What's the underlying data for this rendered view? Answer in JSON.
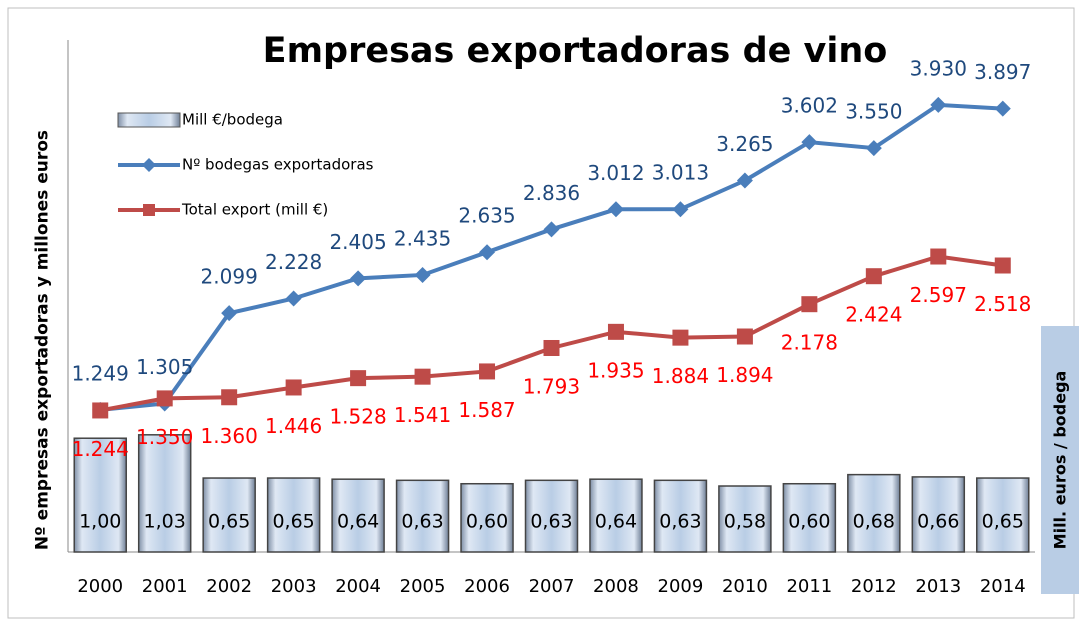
{
  "chart_data": {
    "type": "bar-line",
    "title": "Empresas exportadoras de vino",
    "y_label": "Nº empresas exportadoras y millones euros",
    "y2_label": "Mill. euros / bodega",
    "categories": [
      "2000",
      "2001",
      "2002",
      "2003",
      "2004",
      "2005",
      "2006",
      "2007",
      "2008",
      "2009",
      "2010",
      "2011",
      "2012",
      "2013",
      "2014"
    ],
    "ylim": [
      0,
      4500
    ],
    "y2lim": [
      0,
      4.5
    ],
    "legend": "top-left",
    "series": [
      {
        "name": "Mill €/bodega",
        "type": "bar",
        "axis": "y2",
        "color": "#b9cde5",
        "values": [
          1.0,
          1.03,
          0.65,
          0.65,
          0.64,
          0.63,
          0.6,
          0.63,
          0.64,
          0.63,
          0.58,
          0.6,
          0.68,
          0.66,
          0.65
        ],
        "value_labels": [
          "1,00",
          "1,03",
          "0,65",
          "0,65",
          "0,64",
          "0,63",
          "0,60",
          "0,63",
          "0,64",
          "0,63",
          "0,58",
          "0,60",
          "0,68",
          "0,66",
          "0,65"
        ]
      },
      {
        "name": "Nº bodegas exportadoras",
        "type": "line",
        "color": "#4a7ebb",
        "values": [
          1249,
          1305,
          2099,
          2228,
          2405,
          2435,
          2635,
          2836,
          3012,
          3013,
          3265,
          3602,
          3550,
          3930,
          3897
        ],
        "value_labels": [
          "1.249",
          "1.305",
          "2.099",
          "2.228",
          "2.405",
          "2.435",
          "2.635",
          "2.836",
          "3.012",
          "3.013",
          "3.265",
          "3.602",
          "3.550",
          "3.930",
          "3.897"
        ]
      },
      {
        "name": "Total export (mill €)",
        "type": "line",
        "color": "#be4b48",
        "values": [
          1244,
          1350,
          1360,
          1446,
          1528,
          1541,
          1587,
          1793,
          1935,
          1884,
          1894,
          2178,
          2424,
          2597,
          2518
        ],
        "value_labels": [
          "1.244",
          "1.350",
          "1.360",
          "1.446",
          "1.528",
          "1.541",
          "1.587",
          "1.793",
          "1.935",
          "1.884",
          "1.894",
          "2.178",
          "2.424",
          "2.597",
          "2.518"
        ]
      }
    ]
  }
}
